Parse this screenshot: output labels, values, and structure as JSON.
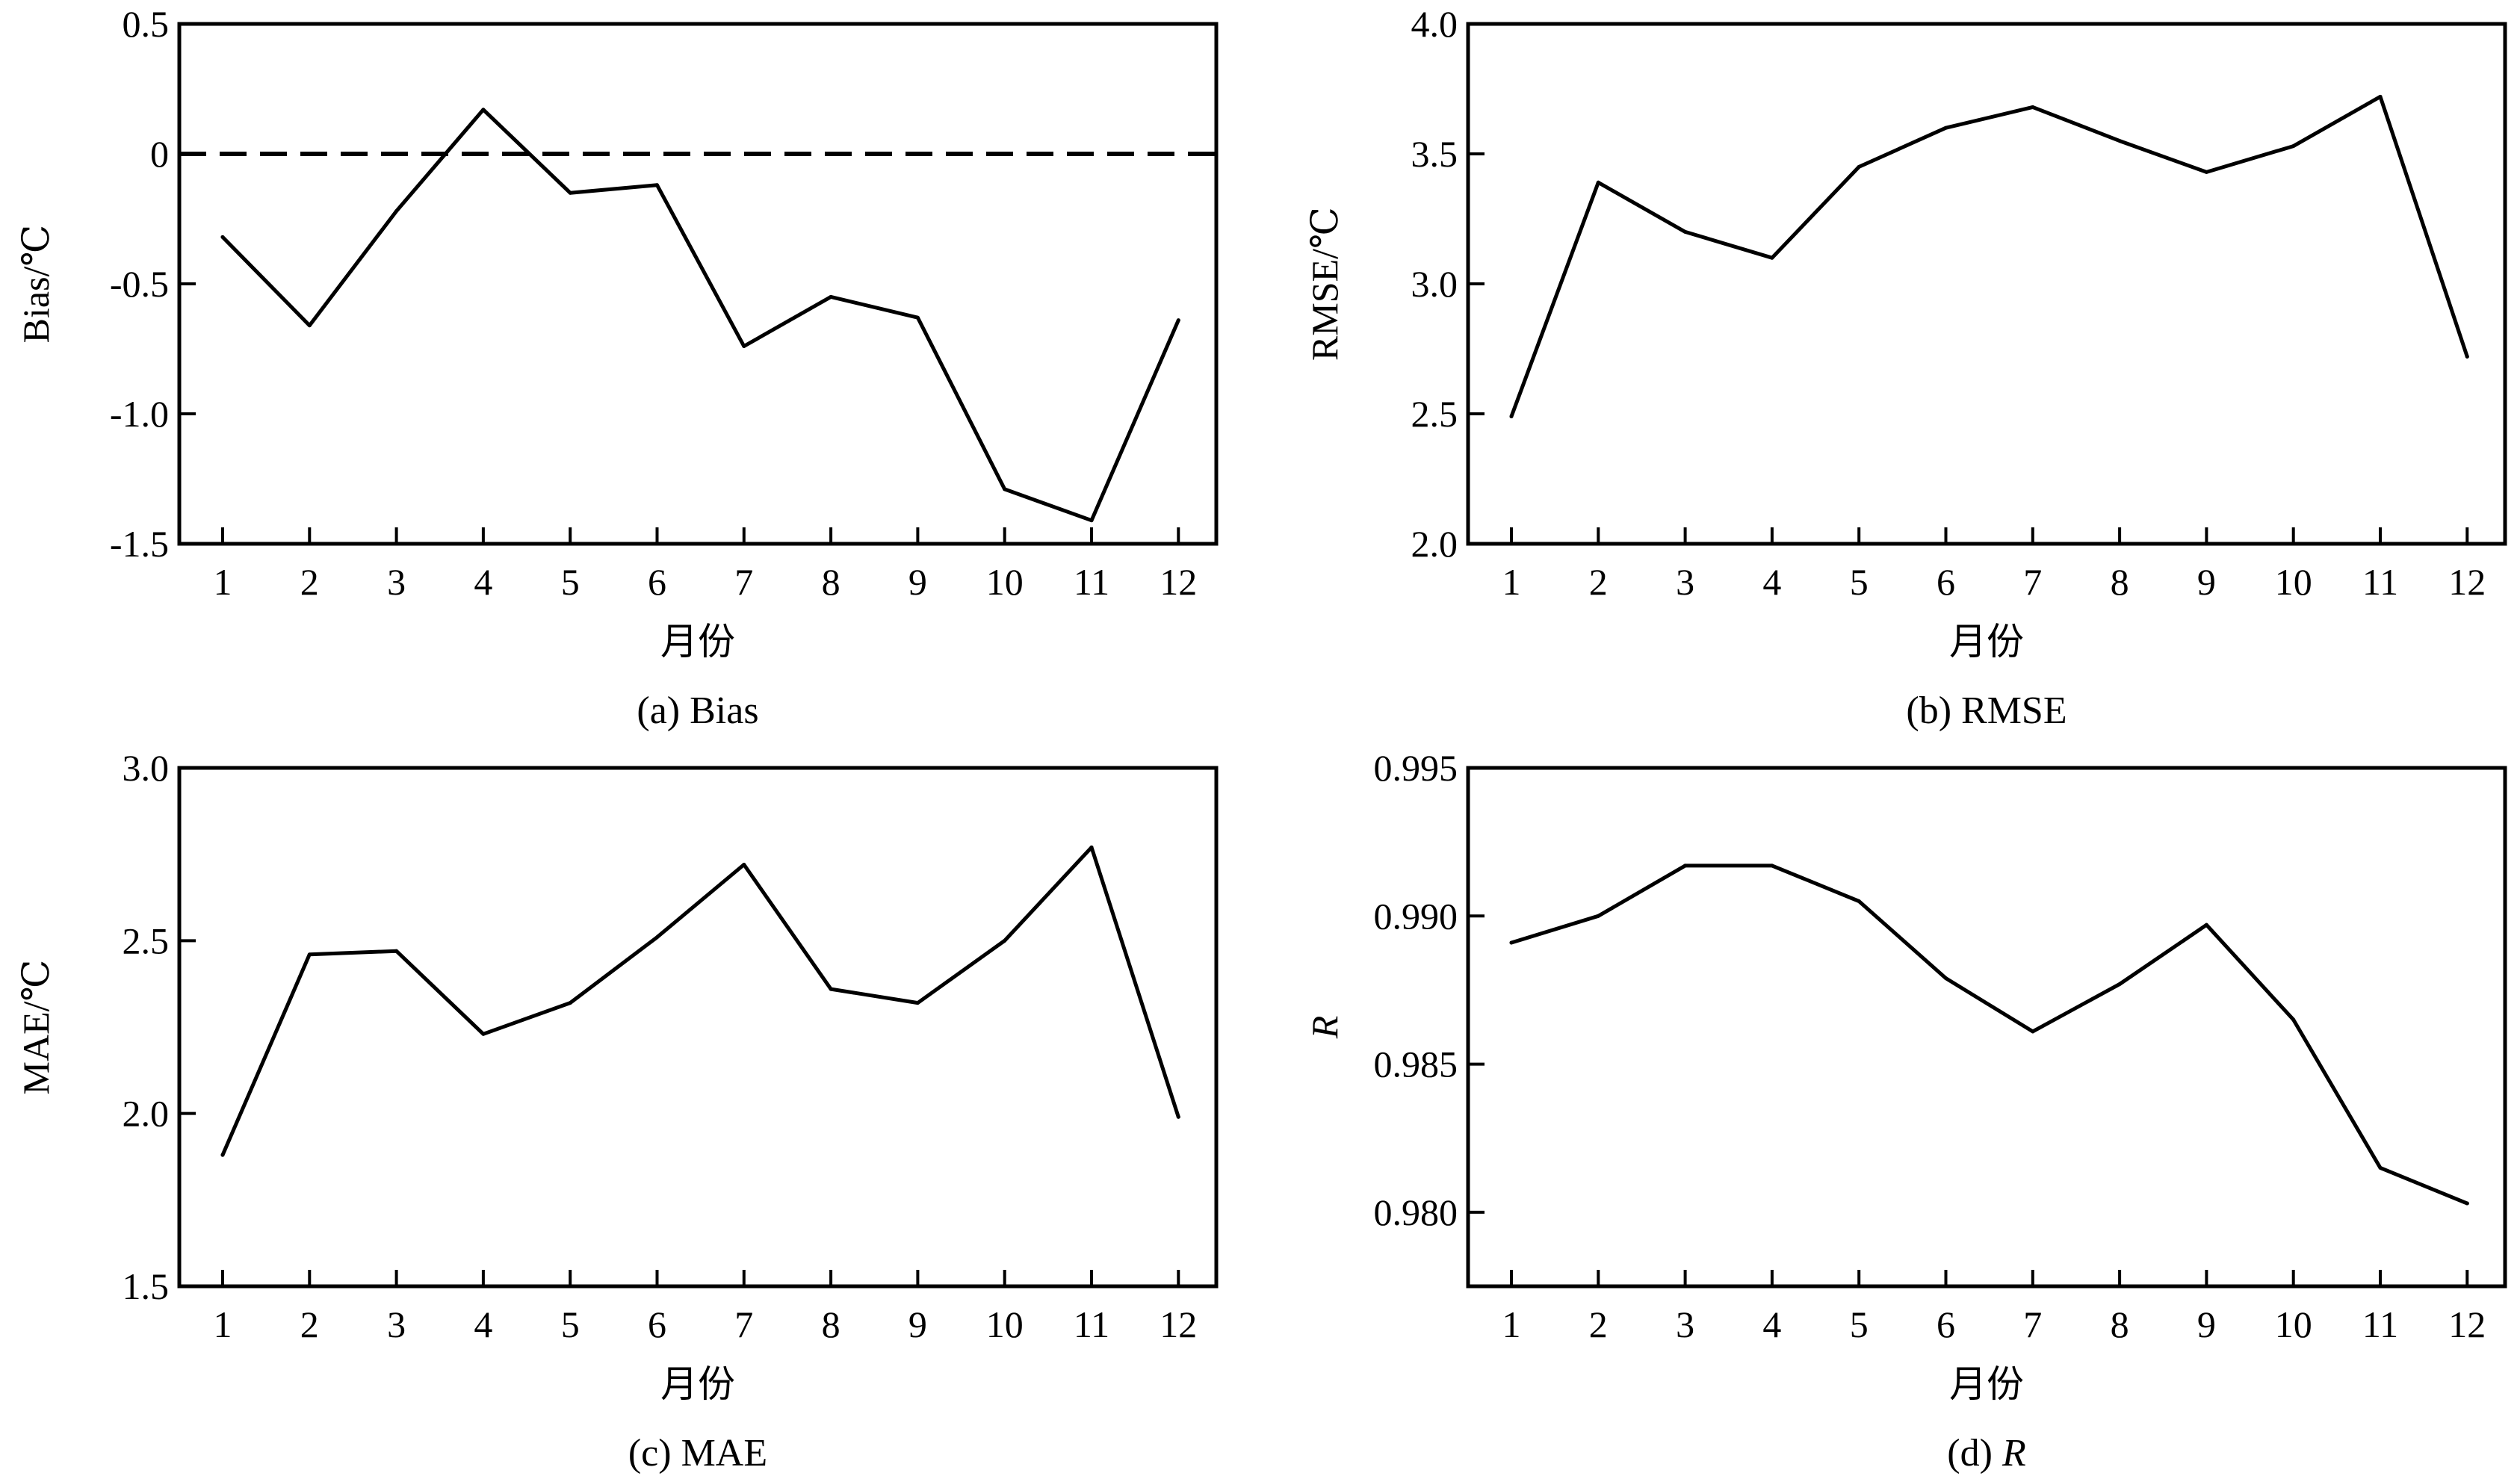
{
  "chart_data": [
    {
      "id": "bias",
      "type": "line",
      "caption": "(a) Bias",
      "xlabel": "月份",
      "ylabel": "Bias/℃",
      "categories": [
        "1",
        "2",
        "3",
        "4",
        "5",
        "6",
        "7",
        "8",
        "9",
        "10",
        "11",
        "12"
      ],
      "series": [
        {
          "values": [
            -0.32,
            -0.66,
            -0.22,
            0.17,
            -0.15,
            -0.12,
            -0.74,
            -0.55,
            -0.63,
            -1.29,
            -1.41,
            -0.64
          ]
        }
      ],
      "ylim": [
        -1.5,
        0.5
      ],
      "yticks": [
        "0.5",
        "0",
        "-0.5",
        "-1.0",
        "-1.5"
      ],
      "ytick_values": [
        0.5,
        0,
        -0.5,
        -1.0,
        -1.5
      ],
      "reference_line": {
        "y": 0,
        "style": "dashed"
      },
      "grid": false
    },
    {
      "id": "rmse",
      "type": "line",
      "caption": "(b) RMSE",
      "xlabel": "月份",
      "ylabel": "RMSE/℃",
      "categories": [
        "1",
        "2",
        "3",
        "4",
        "5",
        "6",
        "7",
        "8",
        "9",
        "10",
        "11",
        "12"
      ],
      "series": [
        {
          "values": [
            2.49,
            3.39,
            3.2,
            3.1,
            3.45,
            3.6,
            3.68,
            3.55,
            3.43,
            3.53,
            3.72,
            2.72
          ]
        }
      ],
      "ylim": [
        2.0,
        4.0
      ],
      "yticks": [
        "4.0",
        "3.5",
        "3.0",
        "2.5",
        "2.0"
      ],
      "ytick_values": [
        4.0,
        3.5,
        3.0,
        2.5,
        2.0
      ],
      "grid": false
    },
    {
      "id": "mae",
      "type": "line",
      "caption": "(c) MAE",
      "xlabel": "月份",
      "ylabel": "MAE/℃",
      "categories": [
        "1",
        "2",
        "3",
        "4",
        "5",
        "6",
        "7",
        "8",
        "9",
        "10",
        "11",
        "12"
      ],
      "series": [
        {
          "values": [
            1.88,
            2.46,
            2.47,
            2.23,
            2.32,
            2.51,
            2.72,
            2.36,
            2.32,
            2.5,
            2.77,
            1.99
          ]
        }
      ],
      "ylim": [
        1.5,
        3.0
      ],
      "yticks": [
        "3.0",
        "2.5",
        "2.0",
        "1.5"
      ],
      "ytick_values": [
        3.0,
        2.5,
        2.0,
        1.5
      ],
      "grid": false
    },
    {
      "id": "r",
      "type": "line",
      "caption_prefix": "(d) ",
      "caption_var": "R",
      "xlabel": "月份",
      "ylabel": "R",
      "categories": [
        "1",
        "2",
        "3",
        "4",
        "5",
        "6",
        "7",
        "8",
        "9",
        "10",
        "11",
        "12"
      ],
      "series": [
        {
          "values": [
            0.9891,
            0.99,
            0.9917,
            0.9917,
            0.9905,
            0.9879,
            0.9861,
            0.9877,
            0.9897,
            0.9865,
            0.9815,
            0.9803
          ]
        }
      ],
      "ylim": [
        0.9775,
        0.995
      ],
      "yticks": [
        "0.995",
        "0.990",
        "0.985",
        "0.980"
      ],
      "ytick_values": [
        0.995,
        0.99,
        0.985,
        0.98
      ],
      "grid": false
    }
  ]
}
